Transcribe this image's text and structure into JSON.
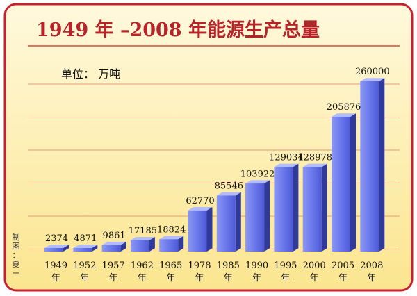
{
  "chart_data": {
    "type": "bar",
    "title": "1949 年 –2008 年能源生产总量",
    "unit_label": "单位： 万吨",
    "year_suffix": "年",
    "credit": "制图：夏一",
    "categories": [
      "1949",
      "1952",
      "1957",
      "1962",
      "1965",
      "1978",
      "1985",
      "1990",
      "1995",
      "2000",
      "2005",
      "2008"
    ],
    "values": [
      2374,
      4871,
      9861,
      17185,
      18824,
      62770,
      85546,
      103922,
      129034,
      128978,
      205876,
      260000
    ],
    "ylim": [
      0,
      260000
    ],
    "grid": true,
    "colors": {
      "frame_border": "#c8202f",
      "background_top": "#fff9dc",
      "background_bottom": "#fbe58f",
      "gridline": "#e89a7a",
      "title_underline": "#d94a3a",
      "bar_front": "#6a78ec",
      "bar_side": "#2f3a9a",
      "bar_top": "#b2bbff"
    }
  }
}
